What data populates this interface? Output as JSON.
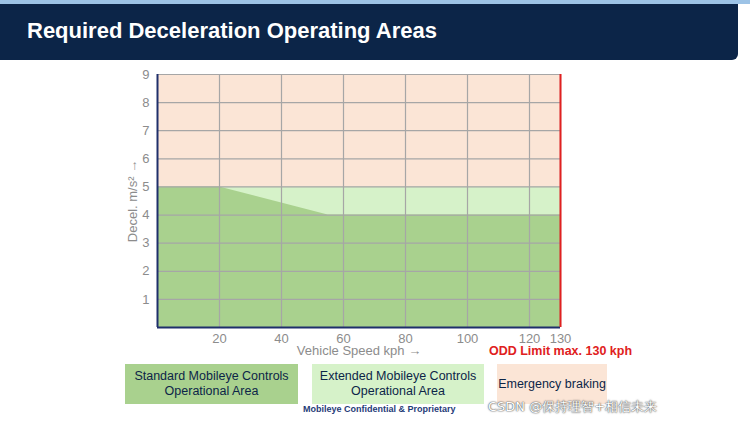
{
  "chart_data": {
    "type": "area",
    "title": "Required Deceleration Operating Areas",
    "x_label": "Vehicle Speed kph",
    "y_label": "Decel. m/s²",
    "x": [
      0,
      20,
      55,
      130
    ],
    "series": [
      {
        "name": "Standard Mobileye Controls Operational Area",
        "color": "#a9d18e",
        "values": [
          5,
          5,
          4,
          4
        ]
      },
      {
        "name": "Extended Mobileye Controls Operational Area",
        "color": "#d6f2c9",
        "values": [
          5,
          5,
          5,
          5
        ]
      },
      {
        "name": "Emergency braking",
        "color": "#fbe5d6",
        "values": [
          9,
          9,
          9,
          9
        ]
      }
    ],
    "xlim": [
      0,
      130
    ],
    "xticks": [
      20,
      40,
      60,
      80,
      100,
      120,
      130
    ],
    "ylim": [
      0,
      9
    ],
    "yticks": [
      1,
      2,
      3,
      4,
      5,
      6,
      7,
      8,
      9
    ],
    "grid": true,
    "stacked": false,
    "legend": "bottom",
    "annotations": [
      {
        "text": "ODD Limit max. 130 kph",
        "x": 130,
        "color": "#e02020"
      }
    ],
    "footnote": "Mobileye Confidential & Proprietary",
    "watermark": "CSDN @保持理智+相信未来"
  }
}
